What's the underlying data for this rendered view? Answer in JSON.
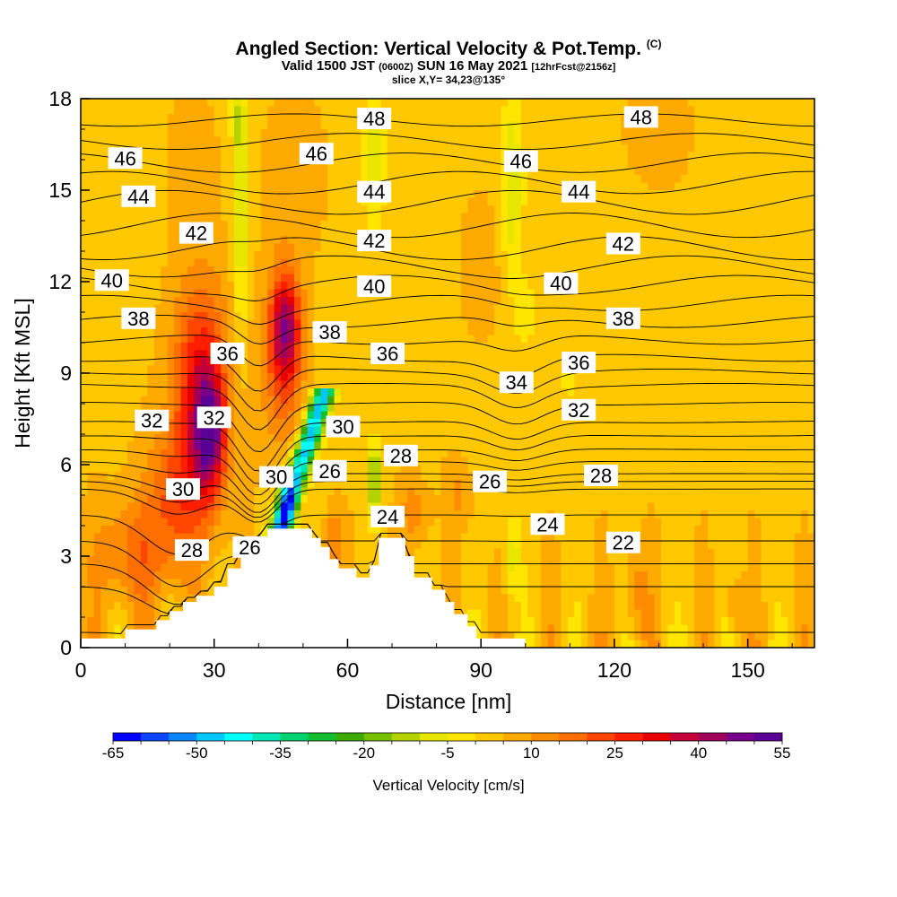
{
  "chart_data": {
    "type": "heatmap",
    "title": "Angled Section: Vertical Velocity & Pot.Temp.",
    "title_unit": "(C)",
    "subtitle_main_a": "Valid 1500 JST",
    "subtitle_utc": "(0600Z)",
    "subtitle_main_b": "SUN 16 May 2021",
    "subtitle_fcst": "[12hrFcst@2156z]",
    "slice_label": "slice X,Y= 34,23@135°",
    "xlabel": "Distance [nm]",
    "ylabel": "Height [Kft MSL]",
    "xlim": [
      0,
      165
    ],
    "ylim": [
      0,
      18
    ],
    "x_ticks": [
      0,
      30,
      60,
      90,
      120,
      150
    ],
    "y_ticks": [
      0,
      3,
      6,
      9,
      12,
      15,
      18
    ],
    "colorbar": {
      "label": "Vertical Velocity [cm/s]",
      "tick_labels": [
        "-65",
        "-50",
        "-35",
        "-20",
        "-5",
        "10",
        "25",
        "40",
        "55"
      ],
      "colors": [
        "#0000ff",
        "#0a46ff",
        "#0a87ff",
        "#00c8ff",
        "#00ffff",
        "#00e6b4",
        "#00d26e",
        "#14be32",
        "#3caa00",
        "#78be00",
        "#b4d200",
        "#e6e600",
        "#ffe600",
        "#ffc800",
        "#ffaa00",
        "#ff8c00",
        "#ff6e00",
        "#ff4600",
        "#ff1e00",
        "#e60000",
        "#c3003c",
        "#a0005a",
        "#78008c",
        "#5a0096"
      ]
    },
    "theta_labels": [
      {
        "v": "48",
        "x": 66,
        "y": 17.35
      },
      {
        "v": "48",
        "x": 126,
        "y": 17.4
      },
      {
        "v": "46",
        "x": 10,
        "y": 16.05
      },
      {
        "v": "46",
        "x": 53,
        "y": 16.2
      },
      {
        "v": "46",
        "x": 99,
        "y": 15.95
      },
      {
        "v": "44",
        "x": 13,
        "y": 14.8
      },
      {
        "v": "44",
        "x": 66,
        "y": 14.95
      },
      {
        "v": "44",
        "x": 112,
        "y": 14.95
      },
      {
        "v": "42",
        "x": 26,
        "y": 13.6
      },
      {
        "v": "42",
        "x": 66,
        "y": 13.35
      },
      {
        "v": "42",
        "x": 122,
        "y": 13.25
      },
      {
        "v": "40",
        "x": 7,
        "y": 12.05
      },
      {
        "v": "40",
        "x": 66,
        "y": 11.85
      },
      {
        "v": "40",
        "x": 108,
        "y": 11.95
      },
      {
        "v": "38",
        "x": 13,
        "y": 10.8
      },
      {
        "v": "38",
        "x": 56,
        "y": 10.35
      },
      {
        "v": "38",
        "x": 122,
        "y": 10.8
      },
      {
        "v": "36",
        "x": 33,
        "y": 9.65
      },
      {
        "v": "36",
        "x": 69,
        "y": 9.65
      },
      {
        "v": "36",
        "x": 112,
        "y": 9.35
      },
      {
        "v": "34",
        "x": 98,
        "y": 8.7
      },
      {
        "v": "32",
        "x": 16,
        "y": 7.45
      },
      {
        "v": "32",
        "x": 30,
        "y": 7.55
      },
      {
        "v": "32",
        "x": 112,
        "y": 7.8
      },
      {
        "v": "30",
        "x": 59,
        "y": 7.25
      },
      {
        "v": "30",
        "x": 44,
        "y": 5.6
      },
      {
        "v": "30",
        "x": 23,
        "y": 5.2
      },
      {
        "v": "28",
        "x": 72,
        "y": 6.3
      },
      {
        "v": "28",
        "x": 117,
        "y": 5.65
      },
      {
        "v": "28",
        "x": 25,
        "y": 3.2
      },
      {
        "v": "26",
        "x": 56,
        "y": 5.8
      },
      {
        "v": "26",
        "x": 92,
        "y": 5.45
      },
      {
        "v": "26",
        "x": 38,
        "y": 3.3
      },
      {
        "v": "24",
        "x": 69,
        "y": 4.3
      },
      {
        "v": "24",
        "x": 105,
        "y": 4.05
      },
      {
        "v": "22",
        "x": 122,
        "y": 3.45
      }
    ]
  }
}
